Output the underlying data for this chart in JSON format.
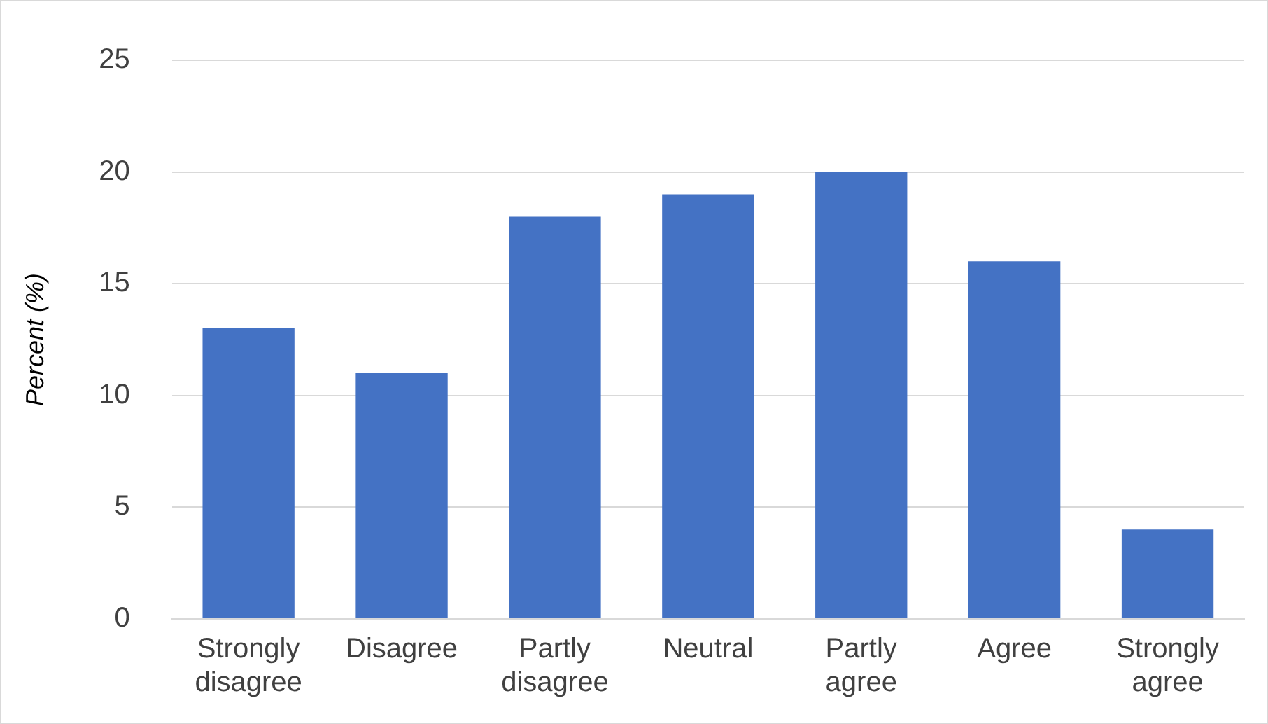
{
  "chart_data": {
    "type": "bar",
    "ylabel": "Percent (%)",
    "categories": [
      "Strongly disagree",
      "Disagree",
      "Partly disagree",
      "Neutral",
      "Partly agree",
      "Agree",
      "Strongly agree"
    ],
    "values": [
      13,
      11,
      18,
      19,
      20,
      16,
      4
    ],
    "color": "#4472c4",
    "ylim": [
      0,
      25
    ],
    "yticks": [
      0,
      5,
      10,
      15,
      20,
      25
    ],
    "grid": "y"
  }
}
